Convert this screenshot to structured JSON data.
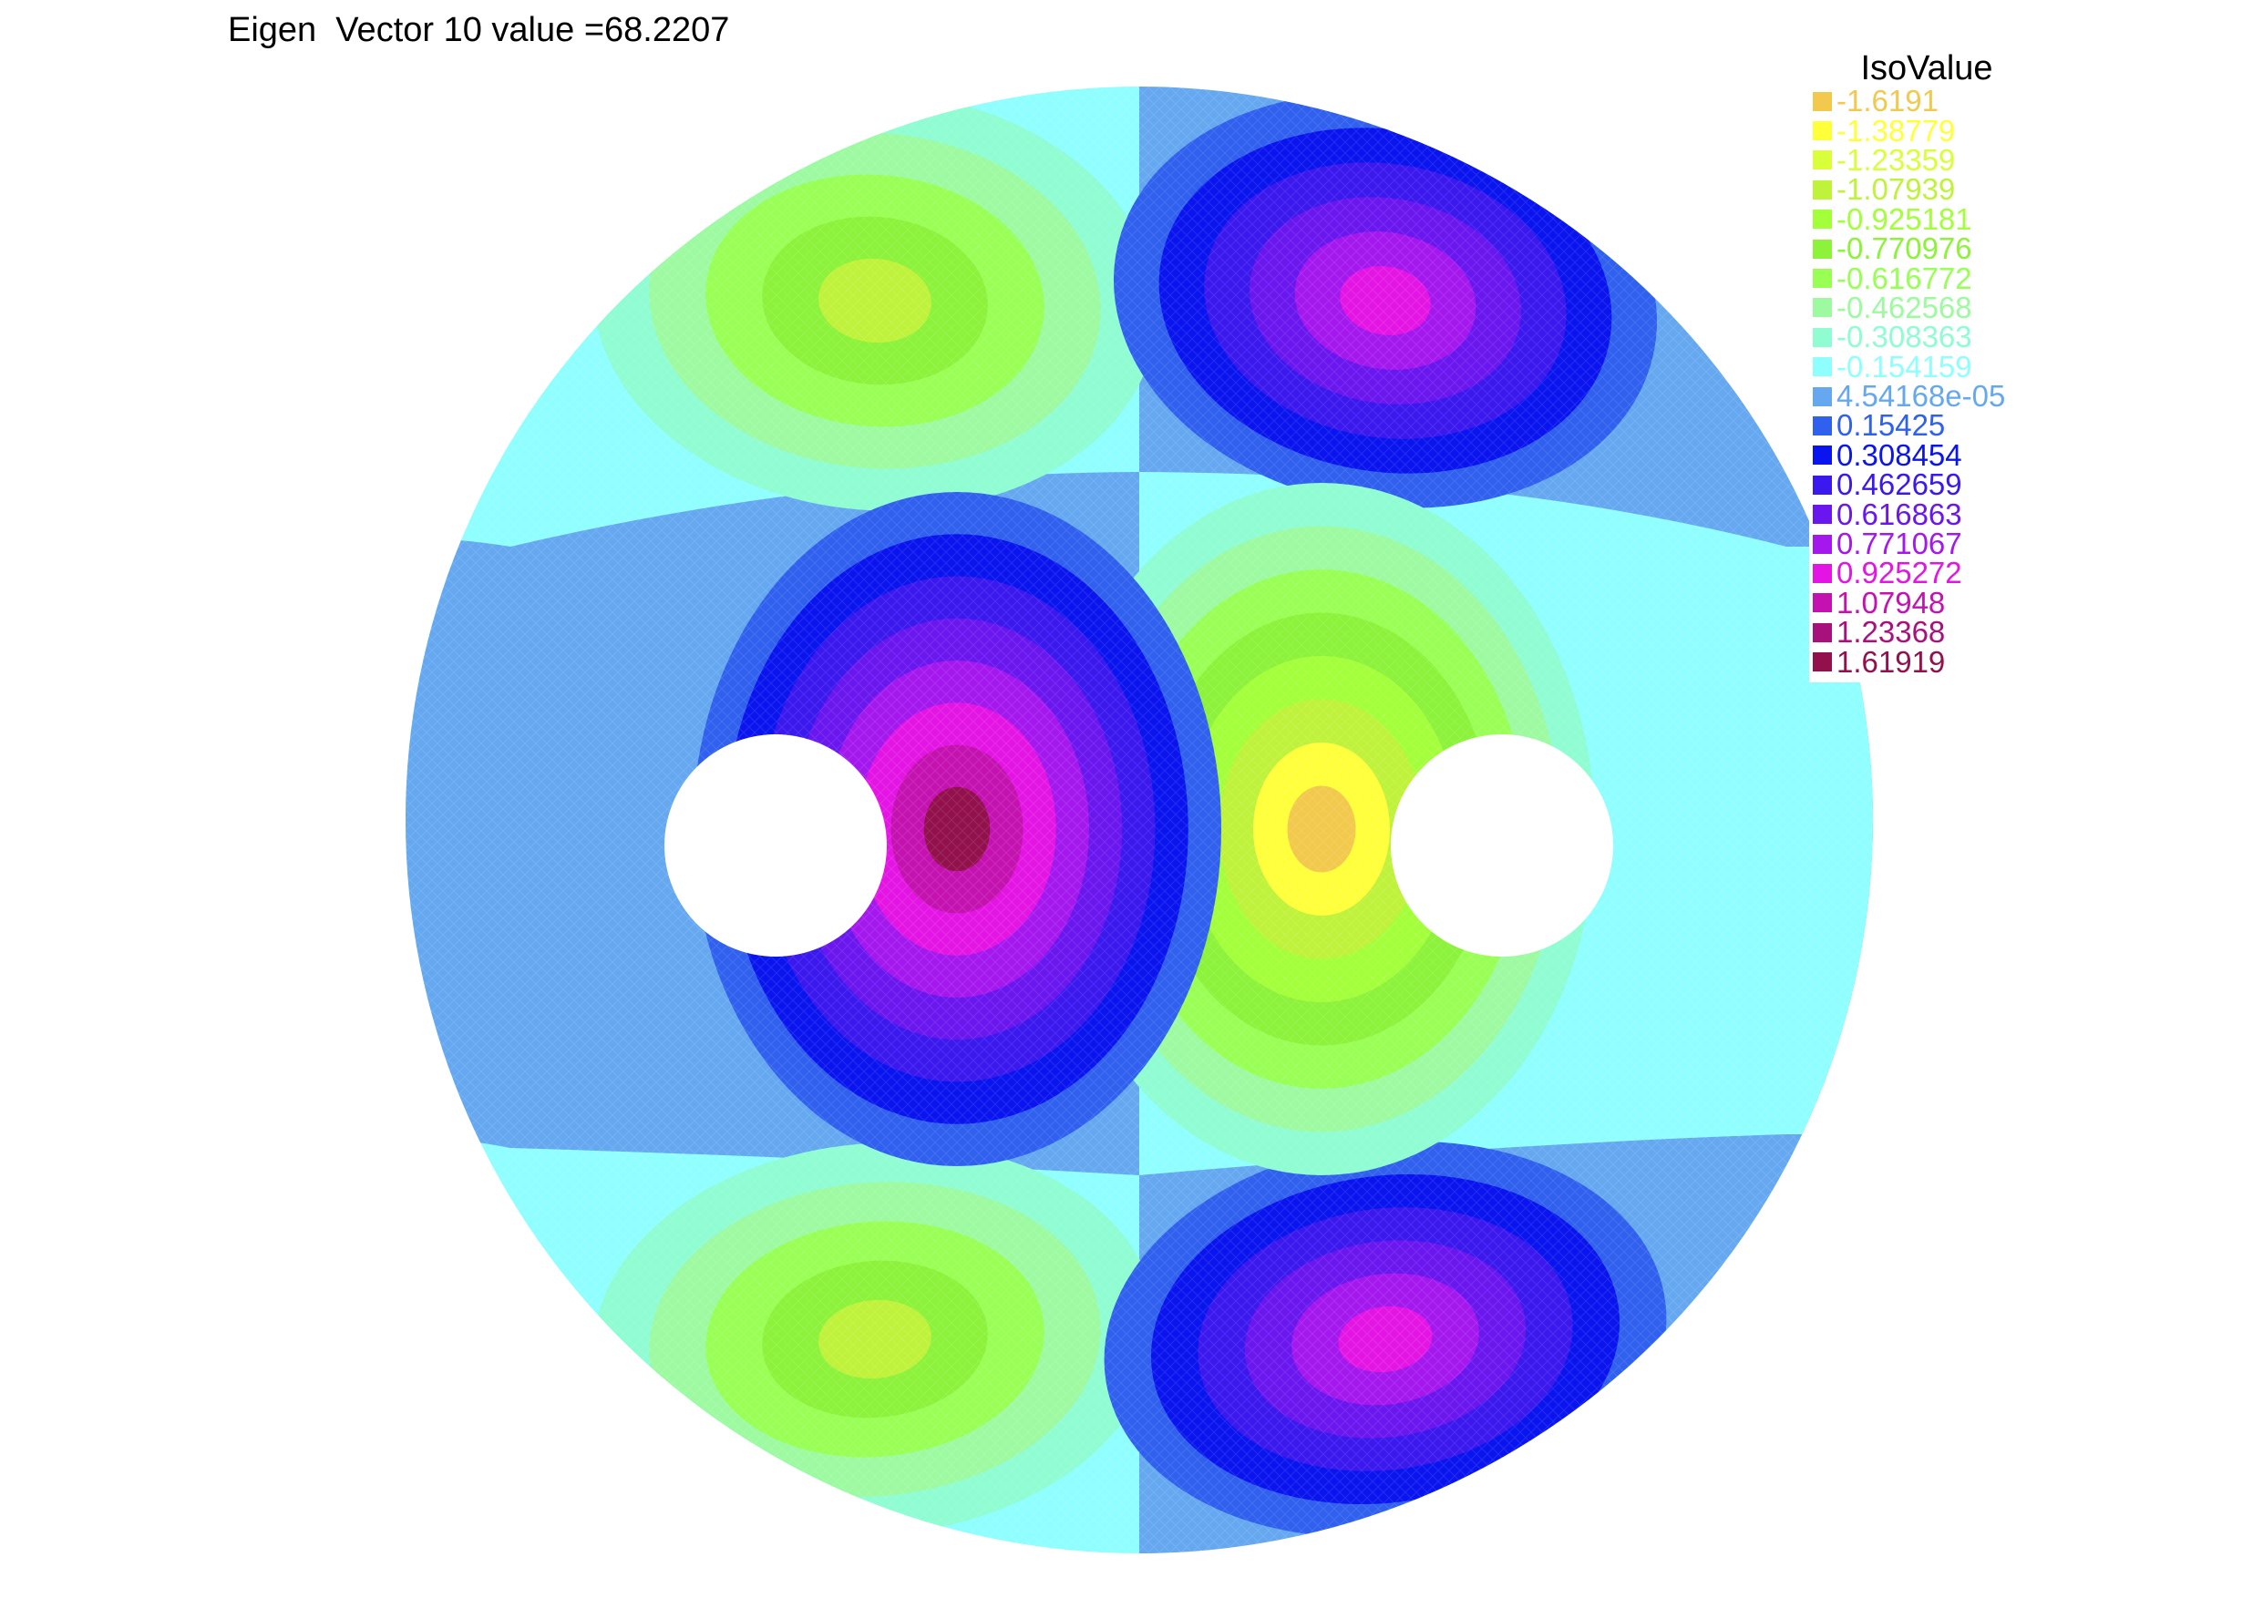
{
  "chart_data": {
    "type": "heatmap",
    "title": "Eigen  Vector 10 value =68.2207",
    "legend": {
      "title": "IsoValue",
      "placement": "top-right",
      "levels": [
        {
          "value": "-1.6191",
          "color": "#f2c94c"
        },
        {
          "value": "-1.38779",
          "color": "#ffff3a"
        },
        {
          "value": "-1.23359",
          "color": "#d9ff3a"
        },
        {
          "value": "-1.07939",
          "color": "#bff23a"
        },
        {
          "value": "-0.925181",
          "color": "#a3ff3a"
        },
        {
          "value": "-0.770976",
          "color": "#8cf23a"
        },
        {
          "value": "-0.616772",
          "color": "#99ff55"
        },
        {
          "value": "-0.462568",
          "color": "#9dfaa0"
        },
        {
          "value": "-0.308363",
          "color": "#8ffcd2"
        },
        {
          "value": "-0.154159",
          "color": "#8ffefe"
        },
        {
          "value": "4.54168e-05",
          "color": "#66a8f0"
        },
        {
          "value": "0.15425",
          "color": "#3060ee"
        },
        {
          "value": "0.308454",
          "color": "#0a14ee"
        },
        {
          "value": "0.462659",
          "color": "#3a18ee"
        },
        {
          "value": "0.616863",
          "color": "#6a16ee"
        },
        {
          "value": "0.771067",
          "color": "#a418ee"
        },
        {
          "value": "0.925272",
          "color": "#e415e4"
        },
        {
          "value": "1.07948",
          "color": "#c412b0"
        },
        {
          "value": "1.23368",
          "color": "#a8107c"
        },
        {
          "value": "1.61919",
          "color": "#92104c"
        }
      ]
    },
    "domain": "disk with two circular holes",
    "grid": false
  },
  "icons": {
    "mesh": "triangular-mesh-fill"
  }
}
